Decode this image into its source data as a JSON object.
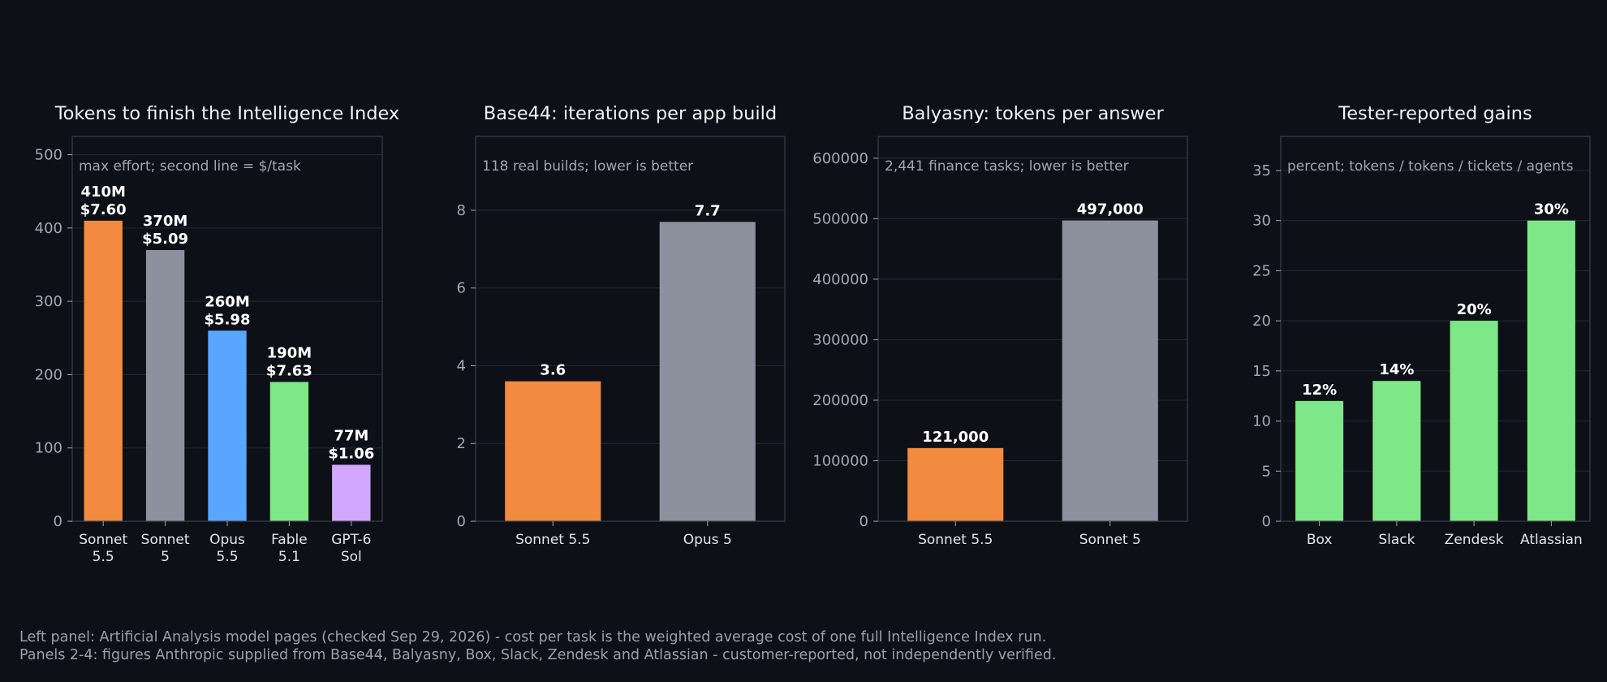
{
  "colors": {
    "background": "#0d1017",
    "frame": "#3a3f4a",
    "grid": "#232833",
    "title": "#f2f2f2",
    "subtitle": "#a0a6b0",
    "tick": "#a3a8b2",
    "xtick": "#e6e6e6",
    "label": "#ffffff"
  },
  "chart_data": [
    {
      "type": "bar",
      "title": "Tokens to finish the Intelligence Index",
      "subtitle": "max effort; second line = $/task",
      "categories": [
        "Sonnet\n5.5",
        "Sonnet\n5",
        "Opus\n5.5",
        "Fable\n5.1",
        "GPT-6\nSol"
      ],
      "values": [
        410,
        370,
        260,
        190,
        77
      ],
      "value_labels": [
        "410M\n$7.60",
        "370M\n$5.09",
        "260M\n$5.98",
        "190M\n$7.63",
        "77M\n$1.06"
      ],
      "bar_colors": [
        "#f28a3f",
        "#8b929e",
        "#58a6ff",
        "#7ee787",
        "#d2a8ff"
      ],
      "ylim": [
        0,
        525
      ],
      "yticks": [
        0,
        100,
        200,
        300,
        400,
        500
      ],
      "ytick_labels": [
        "0",
        "100",
        "200",
        "300",
        "400",
        "500"
      ],
      "grid": true
    },
    {
      "type": "bar",
      "title": "Base44: iterations per app build",
      "subtitle": "118 real builds; lower is better",
      "categories": [
        "Sonnet 5.5",
        "Opus 5"
      ],
      "values": [
        3.6,
        7.7
      ],
      "value_labels": [
        "3.6",
        "7.7"
      ],
      "bar_colors": [
        "#f28a3f",
        "#8b929e"
      ],
      "ylim": [
        0,
        9.9
      ],
      "yticks": [
        0,
        2,
        4,
        6,
        8
      ],
      "ytick_labels": [
        "0",
        "2",
        "4",
        "6",
        "8"
      ],
      "grid": true
    },
    {
      "type": "bar",
      "title": "Balyasny: tokens per answer",
      "subtitle": "2,441 finance tasks; lower is better",
      "categories": [
        "Sonnet 5.5",
        "Sonnet 5"
      ],
      "values": [
        121000,
        497000
      ],
      "value_labels": [
        "121,000",
        "497,000"
      ],
      "bar_colors": [
        "#f28a3f",
        "#8b929e"
      ],
      "ylim": [
        0,
        636000
      ],
      "yticks": [
        0,
        100000,
        200000,
        300000,
        400000,
        500000,
        600000
      ],
      "ytick_labels": [
        "0",
        "100000",
        "200000",
        "300000",
        "400000",
        "500000",
        "600000"
      ],
      "grid": true
    },
    {
      "type": "bar",
      "title": "Tester-reported gains",
      "subtitle": "percent; tokens / tokens / tickets / agents",
      "categories": [
        "Box",
        "Slack",
        "Zendesk",
        "Atlassian"
      ],
      "values": [
        12,
        14,
        20,
        30
      ],
      "value_labels": [
        "12%",
        "14%",
        "20%",
        "30%"
      ],
      "bar_colors": [
        "#7ee787",
        "#7ee787",
        "#7ee787",
        "#7ee787"
      ],
      "ylim": [
        0,
        38.4
      ],
      "yticks": [
        0,
        5,
        10,
        15,
        20,
        25,
        30,
        35
      ],
      "ytick_labels": [
        "0",
        "5",
        "10",
        "15",
        "20",
        "25",
        "30",
        "35"
      ],
      "grid": true
    }
  ],
  "footnotes": [
    "Left panel: Artificial Analysis model pages (checked Sep 29, 2026) - cost per task is the weighted average cost of one full Intelligence Index run.",
    "Panels 2-4: figures Anthropic supplied from Base44, Balyasny, Box, Slack, Zendesk and Atlassian - customer-reported, not independently verified."
  ]
}
